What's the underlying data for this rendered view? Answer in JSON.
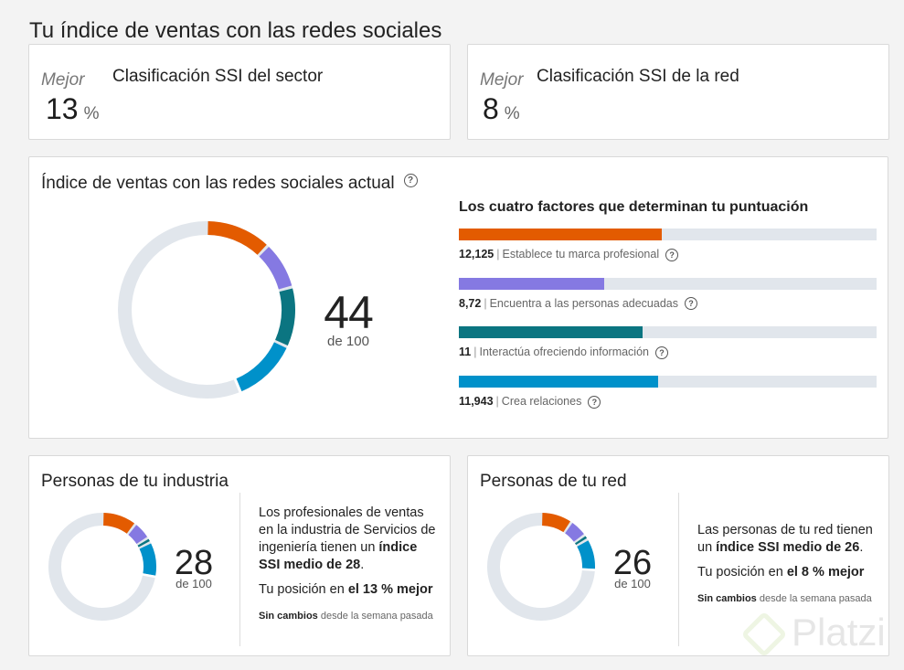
{
  "page": {
    "title": "Tu índice de ventas con las redes sociales"
  },
  "rankings": [
    {
      "qualifier": "Mejor",
      "title": "Clasificación SSI del sector",
      "value": "13",
      "unit": "%"
    },
    {
      "qualifier": "Mejor",
      "title": "Clasificación SSI de la red",
      "value": "8",
      "unit": "%"
    }
  ],
  "current": {
    "title": "Índice de ventas con las redes sociales actual",
    "help_icon": "question-circle-icon",
    "score": "44",
    "score_of": "de 100",
    "factors_title": "Los cuatro factores que determinan tu puntuación",
    "factor_max": 25,
    "factors": [
      {
        "value_text": "12,125",
        "value": 12.125,
        "label": "Establece tu marca profesional",
        "color": "#e35b00"
      },
      {
        "value_text": "8,72",
        "value": 8.72,
        "label": "Encuentra a las personas adecuadas",
        "color": "#8579e2"
      },
      {
        "value_text": "11",
        "value": 11,
        "label": "Interactúa ofreciendo información",
        "color": "#0b7581"
      },
      {
        "value_text": "11,943",
        "value": 11.943,
        "label": "Crea relaciones",
        "color": "#0091ca"
      }
    ],
    "separator": "|",
    "track_color": "#e1e6ec"
  },
  "industry": {
    "title": "Personas de tu industria",
    "score": "28",
    "score_of": "de 100",
    "segments": [
      10.5,
      5.5,
      1.5,
      10.5
    ],
    "desc_1": "Los profesionales de ventas en la industria de Servicios de ingeniería tienen un ",
    "desc_bold": "índice SSI medio de 28",
    "desc_end": ".",
    "pos_text": "Tu posición en ",
    "pos_bold": "el 13 % mejor",
    "chg_bold": "Sin cambios",
    "chg_text": " desde la semana pasada"
  },
  "network": {
    "title": "Personas de tu red",
    "score": "26",
    "score_of": "de 100",
    "segments": [
      9.5,
      5.5,
      1.5,
      9.5
    ],
    "desc_1": "Las personas de tu red tienen un ",
    "desc_bold": "índice SSI medio de 26",
    "desc_end": ".",
    "pos_text": "Tu posición en ",
    "pos_bold": "el 8 % mejor",
    "chg_bold": "Sin cambios",
    "chg_text": " desde la semana pasada"
  },
  "watermark": {
    "text": "Platzi"
  }
}
